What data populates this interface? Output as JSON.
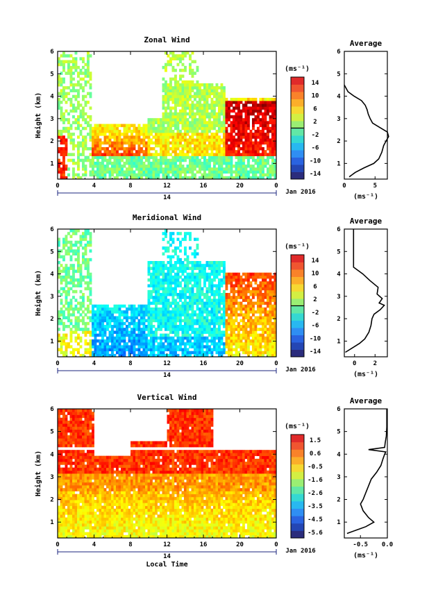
{
  "chart_data": [
    {
      "type": "heatmap",
      "title": "Zonal Wind",
      "ylabel": "Height (km)",
      "xlabel": "",
      "xlim": [
        0,
        24
      ],
      "ylim": [
        0.3,
        6
      ],
      "x_ticks": [
        "0",
        "4",
        "8",
        "12",
        "16",
        "20",
        "0"
      ],
      "y_ticks": [
        "1",
        "2",
        "3",
        "4",
        "5",
        "6"
      ],
      "date_axis": {
        "day": "14",
        "label": "Jan 2016"
      },
      "colorbar": {
        "unit": "(ms⁻¹)",
        "min": -15,
        "max": 16,
        "ticks": [
          "14",
          "10",
          "6",
          "2",
          "-2",
          "-6",
          "-10",
          "-14"
        ]
      },
      "average_profile": {
        "title": "Average",
        "xlabel": "(ms⁻¹)",
        "xlim": [
          0,
          7
        ],
        "x_ticks": [
          "0",
          "5"
        ],
        "y_ticks": [
          "1",
          "2",
          "3",
          "4",
          "5",
          "6"
        ],
        "height_km": [
          0.4,
          0.6,
          0.8,
          1.0,
          1.2,
          1.5,
          1.8,
          2.0,
          2.2,
          2.4,
          2.6,
          2.8,
          3.0,
          3.2,
          3.4,
          3.6,
          3.8,
          4.0,
          4.2,
          4.5
        ],
        "value_ms": [
          0.8,
          1.8,
          3.2,
          4.8,
          5.6,
          6.1,
          6.4,
          6.8,
          7.2,
          7.0,
          5.8,
          4.6,
          4.2,
          3.9,
          3.7,
          3.4,
          2.8,
          1.6,
          0.6,
          0.0
        ]
      }
    },
    {
      "type": "heatmap",
      "title": "Meridional Wind",
      "ylabel": "Height (km)",
      "xlabel": "",
      "xlim": [
        0,
        24
      ],
      "ylim": [
        0.3,
        6
      ],
      "x_ticks": [
        "0",
        "4",
        "8",
        "12",
        "16",
        "20",
        "0"
      ],
      "y_ticks": [
        "1",
        "2",
        "3",
        "4",
        "5",
        "6"
      ],
      "date_axis": {
        "day": "14",
        "label": "Jan 2016"
      },
      "colorbar": {
        "unit": "(ms⁻¹)",
        "min": -15,
        "max": 16,
        "ticks": [
          "14",
          "10",
          "6",
          "2",
          "-2",
          "-6",
          "-10",
          "-14"
        ]
      },
      "average_profile": {
        "title": "Average",
        "xlabel": "(ms⁻¹)",
        "xlim": [
          -1,
          3.2
        ],
        "x_ticks": [
          "0",
          "2"
        ],
        "y_ticks": [
          "1",
          "2",
          "3",
          "4",
          "5",
          "6"
        ],
        "height_km": [
          0.5,
          0.7,
          0.9,
          1.1,
          1.4,
          1.7,
          2.0,
          2.2,
          2.4,
          2.6,
          2.7,
          2.9,
          3.1,
          3.4,
          3.7,
          4.0,
          4.3,
          5.0,
          6.0
        ],
        "value_ms": [
          -0.9,
          -0.2,
          0.5,
          1.0,
          1.4,
          1.6,
          1.7,
          1.9,
          2.5,
          2.9,
          2.4,
          2.7,
          2.2,
          2.3,
          1.5,
          0.8,
          -0.1,
          -0.1,
          -0.1
        ]
      }
    },
    {
      "type": "heatmap",
      "title": "Vertical Wind",
      "ylabel": "Height (km)",
      "xlabel": "Local Time",
      "xlim": [
        0,
        24
      ],
      "ylim": [
        0.3,
        6
      ],
      "x_ticks": [
        "0",
        "4",
        "8",
        "12",
        "16",
        "20",
        "0"
      ],
      "y_ticks": [
        "1",
        "2",
        "3",
        "4",
        "5",
        "6"
      ],
      "date_axis": {
        "day": "14",
        "label": "Jan 2016"
      },
      "colorbar": {
        "unit": "(ms⁻¹)",
        "min": -6,
        "max": 2,
        "ticks": [
          "1.5",
          "0.6",
          "-0.5",
          "-1.6",
          "-2.6",
          "-3.5",
          "-4.5",
          "-5.6"
        ]
      },
      "average_profile": {
        "title": "Average",
        "xlabel": "(ms⁻¹)",
        "xlim": [
          -0.8,
          0.0
        ],
        "x_ticks": [
          "-0.5",
          "0.0"
        ],
        "y_ticks": [
          "1",
          "2",
          "3",
          "4",
          "5",
          "6"
        ],
        "height_km": [
          0.5,
          0.8,
          1.0,
          1.2,
          1.5,
          1.8,
          2.0,
          2.3,
          2.6,
          2.9,
          3.2,
          3.5,
          3.8,
          4.0,
          4.1,
          4.2,
          4.3,
          4.5,
          4.8,
          5.2,
          6.0
        ],
        "value_ms": [
          -0.75,
          -0.4,
          -0.25,
          -0.35,
          -0.45,
          -0.5,
          -0.45,
          -0.4,
          -0.35,
          -0.3,
          -0.2,
          -0.12,
          -0.08,
          -0.05,
          -0.03,
          -0.35,
          -0.05,
          -0.04,
          -0.02,
          -0.01,
          -0.01
        ]
      }
    }
  ]
}
